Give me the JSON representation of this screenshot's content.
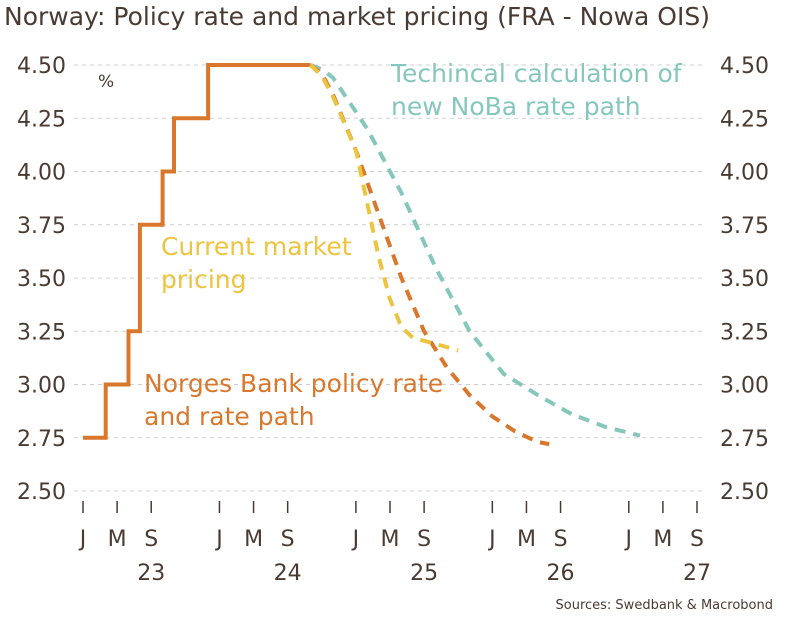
{
  "chart_data": {
    "type": "line",
    "title": "Norway: Policy rate and market pricing (FRA - Nowa OIS)",
    "unit": "%",
    "source": "Sources: Swedbank & Macrobond",
    "ylim": [
      2.5,
      4.5
    ],
    "yticks": [
      2.5,
      2.75,
      3.0,
      3.25,
      3.5,
      3.75,
      4.0,
      4.25,
      4.5
    ],
    "ytick_labels": [
      "2.50",
      "2.75",
      "3.00",
      "3.25",
      "3.50",
      "3.75",
      "4.00",
      "4.25",
      "4.50"
    ],
    "grid": true,
    "x_start": "2023-01",
    "x_end": "2027-07",
    "month_ticks": [
      {
        "date": "2023-01",
        "label": "J"
      },
      {
        "date": "2023-04",
        "label": "M"
      },
      {
        "date": "2023-07",
        "label": "S"
      },
      {
        "date": "2024-01",
        "label": "J"
      },
      {
        "date": "2024-04",
        "label": "M"
      },
      {
        "date": "2024-07",
        "label": "S"
      },
      {
        "date": "2025-01",
        "label": "J"
      },
      {
        "date": "2025-04",
        "label": "M"
      },
      {
        "date": "2025-07",
        "label": "S"
      },
      {
        "date": "2026-01",
        "label": "J"
      },
      {
        "date": "2026-04",
        "label": "M"
      },
      {
        "date": "2026-07",
        "label": "S"
      },
      {
        "date": "2027-01",
        "label": "J"
      },
      {
        "date": "2027-04",
        "label": "M"
      },
      {
        "date": "2027-07",
        "label": "S"
      },
      {
        "date": "2028-01",
        "label": "J"
      }
    ],
    "year_labels": [
      {
        "date": "2023-07",
        "label": "23"
      },
      {
        "date": "2024-07",
        "label": "24"
      },
      {
        "date": "2025-07",
        "label": "25"
      },
      {
        "date": "2026-07",
        "label": "26"
      },
      {
        "date": "2027-07",
        "label": "27"
      }
    ],
    "series": [
      {
        "name": "Norges Bank policy rate",
        "color": "#d9782d",
        "style": "solid",
        "points": [
          [
            "2023-01",
            2.75
          ],
          [
            "2023-03",
            2.75
          ],
          [
            "2023-03",
            3.0
          ],
          [
            "2023-05",
            3.0
          ],
          [
            "2023-05",
            3.25
          ],
          [
            "2023-06",
            3.25
          ],
          [
            "2023-06",
            3.75
          ],
          [
            "2023-08",
            3.75
          ],
          [
            "2023-08",
            4.0
          ],
          [
            "2023-09",
            4.0
          ],
          [
            "2023-09",
            4.25
          ],
          [
            "2023-12",
            4.25
          ],
          [
            "2023-12",
            4.5
          ],
          [
            "2024-09",
            4.5
          ]
        ]
      },
      {
        "name": "Technical calculation of new NoBa rate path",
        "color": "#86c7bd",
        "style": "dashed",
        "points": [
          [
            "2024-09",
            4.5
          ],
          [
            "2024-10",
            4.48
          ],
          [
            "2024-11",
            4.44
          ],
          [
            "2025-02",
            4.2
          ],
          [
            "2025-05",
            3.9
          ],
          [
            "2025-08",
            3.55
          ],
          [
            "2025-11",
            3.25
          ],
          [
            "2026-02",
            3.05
          ],
          [
            "2026-05",
            2.95
          ],
          [
            "2026-08",
            2.86
          ],
          [
            "2026-11",
            2.8
          ],
          [
            "2027-02",
            2.76
          ]
        ]
      },
      {
        "name": "Norges Bank rate path",
        "color": "#d9782d",
        "style": "dashed",
        "points": [
          [
            "2024-09",
            4.5
          ],
          [
            "2024-10",
            4.46
          ],
          [
            "2024-11",
            4.36
          ],
          [
            "2025-01",
            4.1
          ],
          [
            "2025-03",
            3.8
          ],
          [
            "2025-05",
            3.5
          ],
          [
            "2025-07",
            3.25
          ],
          [
            "2025-09",
            3.08
          ],
          [
            "2025-11",
            2.95
          ],
          [
            "2026-01",
            2.85
          ],
          [
            "2026-03",
            2.78
          ],
          [
            "2026-05",
            2.73
          ],
          [
            "2026-06",
            2.72
          ]
        ]
      },
      {
        "name": "Current market pricing",
        "color": "#ecc440",
        "style": "dashed",
        "points": [
          [
            "2024-09",
            4.5
          ],
          [
            "2024-10",
            4.45
          ],
          [
            "2024-11",
            4.35
          ],
          [
            "2025-01",
            4.1
          ],
          [
            "2025-02",
            3.85
          ],
          [
            "2025-03",
            3.6
          ],
          [
            "2025-04",
            3.4
          ],
          [
            "2025-05",
            3.27
          ],
          [
            "2025-06",
            3.22
          ],
          [
            "2025-08",
            3.19
          ],
          [
            "2025-10",
            3.16
          ]
        ]
      }
    ],
    "annotations": [
      {
        "lines": [
          "Techincal calculation of",
          "new NoBa rate path"
        ],
        "color": "#86c7bd"
      },
      {
        "lines": [
          "Current market",
          "pricing"
        ],
        "color": "#ecc440"
      },
      {
        "lines": [
          "Norges Bank policy rate",
          "and rate path"
        ],
        "color": "#d9782d"
      }
    ]
  }
}
